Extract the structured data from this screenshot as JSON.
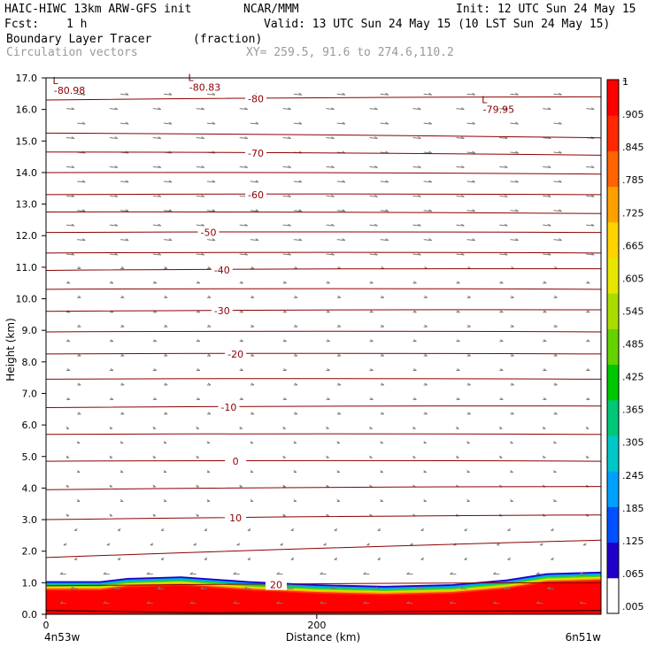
{
  "header": {
    "model": "HAIC-HIWC 13km ARW-GFS init",
    "org": "NCAR/MMM",
    "init": "Init: 12 UTC Sun 24 May 15",
    "fcst_label": "Fcst:",
    "fcst_value": "1 h",
    "valid": "Valid: 13 UTC Sun 24 May 15 (10 LST Sun 24 May 15)",
    "field": "Boundary Layer Tracer",
    "units": "(fraction)",
    "vectors": "Circulation vectors",
    "xy": "XY= 259.5, 91.6 to 274.6,110.2"
  },
  "colors": {
    "contour": "#8b0000",
    "vector": "#7a7a7a",
    "tracer_scale": [
      "#ffffff",
      "#1e00c8",
      "#0050ff",
      "#00a0ff",
      "#00c8c8",
      "#00c878",
      "#00c800",
      "#64d200",
      "#aadc00",
      "#e6e600",
      "#ffd200",
      "#ffa000",
      "#ff6400",
      "#ff2800",
      "#ff0000"
    ]
  },
  "chart_data": {
    "type": "heatmap",
    "description_kind": "vertical cross-section",
    "xlabel": "Distance (km)",
    "ylabel": "Height (km)",
    "xlim": [
      0,
      410
    ],
    "ylim": [
      0,
      17
    ],
    "x_ticks": [
      "0",
      "200"
    ],
    "x_tick_values": [
      0,
      200
    ],
    "y_ticks": [
      "0.0",
      "1.0",
      "2.0",
      "3.0",
      "4.0",
      "5.0",
      "6.0",
      "7.0",
      "8.0",
      "9.0",
      "10.0",
      "11.0",
      "12.0",
      "13.0",
      "14.0",
      "15.0",
      "16.0",
      "17.0"
    ],
    "left_endpoint": "4n53w",
    "right_endpoint": "6n51w",
    "colorbar": {
      "labels": [
        ".005",
        ".065",
        ".125",
        ".185",
        ".245",
        ".305",
        ".365",
        ".425",
        ".485",
        ".545",
        ".605",
        ".665",
        ".725",
        ".785",
        ".845",
        ".905",
        "1"
      ],
      "top_marker": "–"
    },
    "tracer_top_km": [
      {
        "x": 0,
        "z": 1.05
      },
      {
        "x": 40,
        "z": 1.05
      },
      {
        "x": 60,
        "z": 1.15
      },
      {
        "x": 100,
        "z": 1.2
      },
      {
        "x": 150,
        "z": 1.05
      },
      {
        "x": 200,
        "z": 0.95
      },
      {
        "x": 250,
        "z": 0.9
      },
      {
        "x": 300,
        "z": 0.95
      },
      {
        "x": 340,
        "z": 1.1
      },
      {
        "x": 370,
        "z": 1.3
      },
      {
        "x": 410,
        "z": 1.35
      }
    ],
    "temperature_contours": [
      {
        "label": "-80",
        "z0": 16.3,
        "z1": 16.4,
        "label_x": 155
      },
      {
        "label": "",
        "z0": 15.25,
        "z1": 15.1
      },
      {
        "label": "-70",
        "z0": 14.65,
        "z1": 14.55,
        "label_x": 155
      },
      {
        "label": "",
        "z0": 14.0,
        "z1": 13.95
      },
      {
        "label": "-60",
        "z0": 13.3,
        "z1": 13.3,
        "label_x": 155
      },
      {
        "label": "",
        "z0": 12.75,
        "z1": 12.7
      },
      {
        "label": "-50",
        "z0": 12.1,
        "z1": 12.1,
        "label_x": 120
      },
      {
        "label": "",
        "z0": 11.45,
        "z1": 11.45
      },
      {
        "label": "-40",
        "z0": 10.9,
        "z1": 10.95,
        "label_x": 130
      },
      {
        "label": "",
        "z0": 10.3,
        "z1": 10.3
      },
      {
        "label": "-30",
        "z0": 9.6,
        "z1": 9.65,
        "label_x": 130
      },
      {
        "label": "",
        "z0": 8.95,
        "z1": 8.95
      },
      {
        "label": "-20",
        "z0": 8.25,
        "z1": 8.25,
        "label_x": 140
      },
      {
        "label": "",
        "z0": 7.45,
        "z1": 7.45
      },
      {
        "label": "-10",
        "z0": 6.55,
        "z1": 6.6,
        "label_x": 135
      },
      {
        "label": "",
        "z0": 5.7,
        "z1": 5.7
      },
      {
        "label": "0",
        "z0": 4.85,
        "z1": 4.85,
        "label_x": 140
      },
      {
        "label": "",
        "z0": 3.95,
        "z1": 4.05
      },
      {
        "label": "10",
        "z0": 3.0,
        "z1": 3.15,
        "label_x": 140
      },
      {
        "label": "",
        "z0": 1.8,
        "z1": 2.35
      },
      {
        "label": "20",
        "z0": 0.9,
        "z1": 1.0,
        "label_x": 170
      }
    ],
    "extrema": [
      {
        "letter": "L",
        "value": "-80.98",
        "x": 3,
        "z": 16.8
      },
      {
        "letter": "L",
        "value": "-80.83",
        "x": 103,
        "z": 16.9
      },
      {
        "letter": "L",
        "value": "-79.95",
        "x": 320,
        "z": 16.2
      }
    ]
  }
}
